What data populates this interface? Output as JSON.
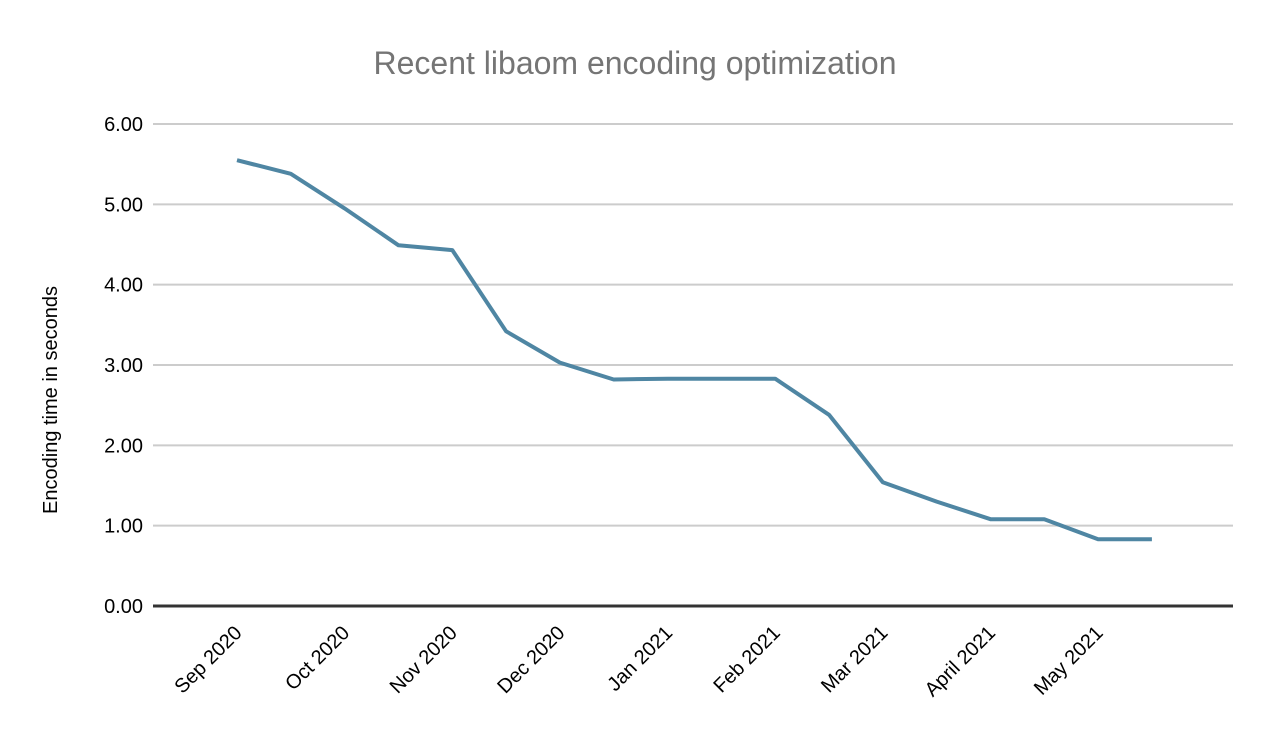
{
  "chart_data": {
    "type": "line",
    "title": "Recent libaom encoding optimization",
    "xlabel": "",
    "ylabel": "Encoding time in seconds",
    "x_tick_labels": [
      "Sep 2020",
      "Oct 2020",
      "Nov 2020",
      "Dec 2020",
      "Jan 2021",
      "Feb 2021",
      "Mar 2021",
      "April 2021",
      "May 2021"
    ],
    "y_tick_labels": [
      "0.00",
      "1.00",
      "2.00",
      "3.00",
      "4.00",
      "5.00",
      "6.00"
    ],
    "ylim": [
      0,
      6
    ],
    "y_tick_step": 1,
    "grid": "horizontal-only",
    "legend": "none",
    "markers": "none",
    "x_label_rotation_deg": -45,
    "points_per_month": 2,
    "tick_point_indices": [
      0,
      2,
      4,
      6,
      8,
      10,
      12,
      14,
      16
    ],
    "series": [
      {
        "color": "#4f86a3",
        "values": [
          5.55,
          5.38,
          4.95,
          4.49,
          4.43,
          3.42,
          3.03,
          2.82,
          2.83,
          2.83,
          2.83,
          2.38,
          1.54,
          1.3,
          1.08,
          1.08,
          0.83,
          0.83
        ]
      }
    ]
  },
  "colors": {
    "background": "#ffffff",
    "title_text": "#757575",
    "axis_label_text": "#000000",
    "gridline": "#cccccc",
    "axis_line": "#333333",
    "series_line": "#4f86a3"
  }
}
